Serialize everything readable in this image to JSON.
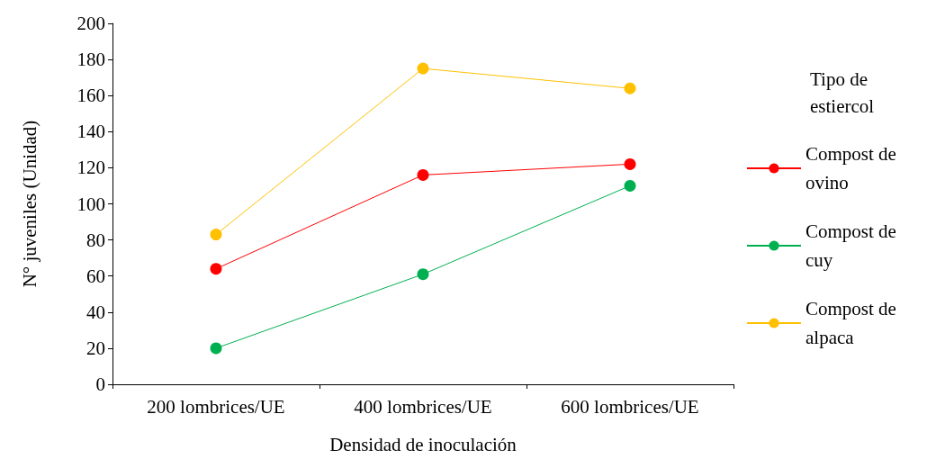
{
  "chart_data": {
    "type": "line",
    "xlabel": "Densidad de inoculación",
    "ylabel": "N° juveniles (Unidad)",
    "legend_title": "Tipo de estiercol",
    "categories": [
      "200 lombrices/UE",
      "400 lombrices/UE",
      "600 lombrices/UE"
    ],
    "series": [
      {
        "name": "Compost de ovino",
        "color": "#ff0000",
        "values": [
          64,
          116,
          122
        ]
      },
      {
        "name": "Compost de cuy",
        "color": "#00b050",
        "values": [
          20,
          61,
          110
        ]
      },
      {
        "name": "Compost de alpaca",
        "color": "#ffc000",
        "values": [
          83,
          175,
          164
        ]
      }
    ],
    "ylim": [
      0,
      200
    ],
    "yticks": [
      0,
      20,
      40,
      60,
      80,
      100,
      120,
      140,
      160,
      180,
      200
    ],
    "grid": false,
    "legend": "right",
    "marker": "circle",
    "line_style": "solid"
  }
}
